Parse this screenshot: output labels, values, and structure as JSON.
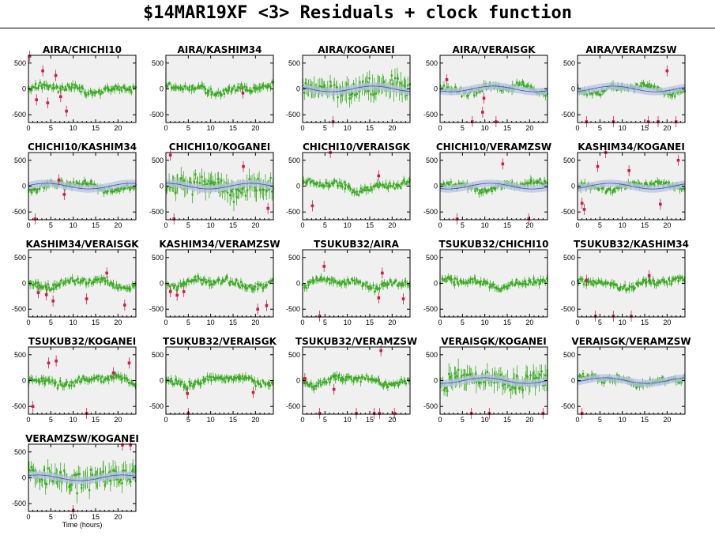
{
  "page": {
    "title": "$14MAR19XF <3> Residuals + clock function",
    "xlabel": "Time (hours)"
  },
  "colors": {
    "residual": "#3aaa22",
    "outlier": "#c8204a",
    "clock_band": "#b8c4e4",
    "clock_line": "#3a50b0",
    "panel_bg": "#f0f0f0"
  },
  "chart_data": [
    {
      "type": "scatter",
      "title": "AIRA/CHICHI10",
      "xlim": [
        0,
        24
      ],
      "ylim": [
        -650,
        650
      ],
      "yticks": [
        -500,
        0,
        500
      ],
      "xticks": [
        0,
        5,
        10,
        15,
        20
      ],
      "clock_function": false,
      "outliers": [
        {
          "x": 0.3,
          "y": 680
        },
        {
          "x": 1.8,
          "y": -210
        },
        {
          "x": 3.2,
          "y": 350
        },
        {
          "x": 4.3,
          "y": -270
        },
        {
          "x": 6.1,
          "y": 260
        },
        {
          "x": 7.2,
          "y": -150
        },
        {
          "x": 8.5,
          "y": -430
        }
      ]
    },
    {
      "type": "scatter",
      "title": "AIRA/KASHIM34",
      "xlim": [
        0,
        24
      ],
      "ylim": [
        -650,
        650
      ],
      "yticks": [
        -500,
        0,
        500
      ],
      "xticks": [
        0,
        5,
        10,
        15,
        20
      ],
      "clock_function": false,
      "outliers": [
        {
          "x": 17.2,
          "y": -80
        }
      ]
    },
    {
      "type": "scatter",
      "title": "AIRA/KOGANEI",
      "xlim": [
        0,
        24
      ],
      "ylim": [
        -650,
        650
      ],
      "yticks": [
        -500,
        0,
        500
      ],
      "xticks": [
        0,
        5,
        10,
        15,
        20
      ],
      "clock_function": true,
      "outliers": [
        {
          "x": 6.8,
          "y": -680
        }
      ]
    },
    {
      "type": "scatter",
      "title": "AIRA/VERAISGK",
      "xlim": [
        0,
        24
      ],
      "ylim": [
        -650,
        650
      ],
      "yticks": [
        -500,
        0,
        500
      ],
      "xticks": [
        0,
        5,
        10,
        15,
        20
      ],
      "clock_function": true,
      "outliers": [
        {
          "x": 1.5,
          "y": 180
        },
        {
          "x": 7.2,
          "y": -680
        },
        {
          "x": 9.8,
          "y": -180
        },
        {
          "x": 9.5,
          "y": -450
        },
        {
          "x": 12.5,
          "y": -680
        }
      ]
    },
    {
      "type": "scatter",
      "title": "AIRA/VERAMZSW",
      "xlim": [
        0,
        24
      ],
      "ylim": [
        -650,
        650
      ],
      "yticks": [
        -500,
        0,
        500
      ],
      "xticks": [
        0,
        5,
        10,
        15,
        20
      ],
      "clock_function": true,
      "outliers": [
        {
          "x": 2.0,
          "y": -680
        },
        {
          "x": 8.0,
          "y": -680
        },
        {
          "x": 15.8,
          "y": -680
        },
        {
          "x": 18.0,
          "y": -680
        },
        {
          "x": 20.0,
          "y": 350
        },
        {
          "x": 22.0,
          "y": -680
        }
      ]
    },
    {
      "type": "scatter",
      "title": "CHICHI10/KASHIM34",
      "xlim": [
        0,
        24
      ],
      "ylim": [
        -650,
        650
      ],
      "yticks": [
        -500,
        0,
        500
      ],
      "xticks": [
        0,
        5,
        10,
        15,
        20
      ],
      "clock_function": true,
      "outliers": [
        {
          "x": 1.5,
          "y": -680
        },
        {
          "x": 6.8,
          "y": 120
        },
        {
          "x": 8.0,
          "y": -160
        }
      ]
    },
    {
      "type": "scatter",
      "title": "CHICHI10/KOGANEI",
      "xlim": [
        0,
        24
      ],
      "ylim": [
        -650,
        650
      ],
      "yticks": [
        -500,
        0,
        500
      ],
      "xticks": [
        0,
        5,
        10,
        15,
        20
      ],
      "clock_function": true,
      "outliers": [
        {
          "x": 1.0,
          "y": 600
        },
        {
          "x": 1.8,
          "y": -680
        },
        {
          "x": 17.3,
          "y": 380
        },
        {
          "x": 22.8,
          "y": -430
        }
      ]
    },
    {
      "type": "scatter",
      "title": "CHICHI10/VERAISGK",
      "xlim": [
        0,
        24
      ],
      "ylim": [
        -650,
        650
      ],
      "yticks": [
        -500,
        0,
        500
      ],
      "xticks": [
        0,
        5,
        10,
        15,
        20
      ],
      "clock_function": false,
      "outliers": [
        {
          "x": 2.2,
          "y": -380
        },
        {
          "x": 6.2,
          "y": 650
        },
        {
          "x": 17.0,
          "y": 200
        }
      ]
    },
    {
      "type": "scatter",
      "title": "CHICHI10/VERAMZSW",
      "xlim": [
        0,
        24
      ],
      "ylim": [
        -650,
        650
      ],
      "yticks": [
        -500,
        0,
        500
      ],
      "xticks": [
        0,
        5,
        10,
        15,
        20
      ],
      "clock_function": true,
      "outliers": [
        {
          "x": 3.8,
          "y": -680
        },
        {
          "x": 14.0,
          "y": 430
        },
        {
          "x": 19.8,
          "y": -680
        }
      ]
    },
    {
      "type": "scatter",
      "title": "KASHIM34/KOGANEI",
      "xlim": [
        0,
        24
      ],
      "ylim": [
        -650,
        650
      ],
      "yticks": [
        -500,
        0,
        500
      ],
      "xticks": [
        0,
        5,
        10,
        15,
        20
      ],
      "clock_function": true,
      "outliers": [
        {
          "x": 1.0,
          "y": -330
        },
        {
          "x": 1.5,
          "y": -450
        },
        {
          "x": 4.5,
          "y": 380
        },
        {
          "x": 6.3,
          "y": 650
        },
        {
          "x": 11.5,
          "y": 300
        },
        {
          "x": 18.5,
          "y": -350
        },
        {
          "x": 22.5,
          "y": 500
        }
      ]
    },
    {
      "type": "scatter",
      "title": "KASHIM34/VERAISGK",
      "xlim": [
        0,
        24
      ],
      "ylim": [
        -650,
        650
      ],
      "yticks": [
        -500,
        0,
        500
      ],
      "xticks": [
        0,
        5,
        10,
        15,
        20
      ],
      "clock_function": false,
      "outliers": [
        {
          "x": 2.2,
          "y": -180
        },
        {
          "x": 4.0,
          "y": -220
        },
        {
          "x": 5.5,
          "y": -340
        },
        {
          "x": 13.0,
          "y": -300
        },
        {
          "x": 17.5,
          "y": 200
        },
        {
          "x": 21.5,
          "y": -420
        }
      ]
    },
    {
      "type": "scatter",
      "title": "KASHIM34/VERAMZSW",
      "xlim": [
        0,
        24
      ],
      "ylim": [
        -650,
        650
      ],
      "yticks": [
        -500,
        0,
        500
      ],
      "xticks": [
        0,
        5,
        10,
        15,
        20
      ],
      "clock_function": false,
      "outliers": [
        {
          "x": 1.0,
          "y": -160
        },
        {
          "x": 2.5,
          "y": -230
        },
        {
          "x": 4.0,
          "y": -160
        },
        {
          "x": 20.5,
          "y": -500
        },
        {
          "x": 22.5,
          "y": -430
        }
      ]
    },
    {
      "type": "scatter",
      "title": "TSUKUB32/AIRA",
      "xlim": [
        0,
        24
      ],
      "ylim": [
        -650,
        650
      ],
      "yticks": [
        -500,
        0,
        500
      ],
      "xticks": [
        0,
        5,
        10,
        15,
        20
      ],
      "clock_function": false,
      "outliers": [
        {
          "x": 3.8,
          "y": -680
        },
        {
          "x": 4.8,
          "y": 330
        },
        {
          "x": 17.8,
          "y": 200
        },
        {
          "x": 17.0,
          "y": -280
        },
        {
          "x": 22.5,
          "y": -300
        }
      ]
    },
    {
      "type": "scatter",
      "title": "TSUKUB32/CHICHI10",
      "xlim": [
        0,
        24
      ],
      "ylim": [
        -650,
        650
      ],
      "yticks": [
        -500,
        0,
        500
      ],
      "xticks": [
        0,
        5,
        10,
        15,
        20
      ],
      "clock_function": false,
      "outliers": []
    },
    {
      "type": "scatter",
      "title": "TSUKUB32/KASHIM34",
      "xlim": [
        0,
        24
      ],
      "ylim": [
        -650,
        650
      ],
      "yticks": [
        -500,
        0,
        500
      ],
      "xticks": [
        0,
        5,
        10,
        15,
        20
      ],
      "clock_function": false,
      "outliers": [
        {
          "x": 2.0,
          "y": 60
        },
        {
          "x": 4.0,
          "y": -680
        },
        {
          "x": 8.0,
          "y": -680
        },
        {
          "x": 12.0,
          "y": -680
        },
        {
          "x": 16.0,
          "y": 150
        }
      ]
    },
    {
      "type": "scatter",
      "title": "TSUKUB32/KOGANEI",
      "xlim": [
        0,
        24
      ],
      "ylim": [
        -650,
        650
      ],
      "yticks": [
        -500,
        0,
        500
      ],
      "xticks": [
        0,
        5,
        10,
        15,
        20
      ],
      "clock_function": false,
      "outliers": [
        {
          "x": 1.0,
          "y": -500
        },
        {
          "x": 4.5,
          "y": 340
        },
        {
          "x": 6.2,
          "y": 380
        },
        {
          "x": 13.0,
          "y": -680
        },
        {
          "x": 19.0,
          "y": 150
        },
        {
          "x": 22.5,
          "y": 340
        }
      ]
    },
    {
      "type": "scatter",
      "title": "TSUKUB32/VERAISGK",
      "xlim": [
        0,
        24
      ],
      "ylim": [
        -650,
        650
      ],
      "yticks": [
        -500,
        0,
        500
      ],
      "xticks": [
        0,
        5,
        10,
        15,
        20
      ],
      "clock_function": false,
      "outliers": [
        {
          "x": 4.8,
          "y": -250
        },
        {
          "x": 5.0,
          "y": -680
        },
        {
          "x": 19.5,
          "y": -230
        }
      ]
    },
    {
      "type": "scatter",
      "title": "TSUKUB32/VERAMZSW",
      "xlim": [
        0,
        24
      ],
      "ylim": [
        -650,
        650
      ],
      "yticks": [
        -500,
        0,
        500
      ],
      "xticks": [
        0,
        5,
        10,
        15,
        20
      ],
      "clock_function": false,
      "outliers": [
        {
          "x": 0.5,
          "y": 40
        },
        {
          "x": 3.8,
          "y": -680
        },
        {
          "x": 7.0,
          "y": -170
        },
        {
          "x": 12.0,
          "y": -680
        },
        {
          "x": 16.0,
          "y": -680
        },
        {
          "x": 17.2,
          "y": -680
        },
        {
          "x": 17.5,
          "y": 580
        },
        {
          "x": 20.5,
          "y": -680
        }
      ]
    },
    {
      "type": "scatter",
      "title": "VERAISGK/KOGANEI",
      "xlim": [
        0,
        24
      ],
      "ylim": [
        -650,
        650
      ],
      "yticks": [
        -500,
        0,
        500
      ],
      "xticks": [
        0,
        5,
        10,
        15,
        20
      ],
      "clock_function": true,
      "outliers": [
        {
          "x": 7.0,
          "y": -680
        },
        {
          "x": 11.0,
          "y": -680
        },
        {
          "x": 23.0,
          "y": -680
        }
      ]
    },
    {
      "type": "scatter",
      "title": "VERAISGK/VERAMZSW",
      "xlim": [
        0,
        24
      ],
      "ylim": [
        -650,
        650
      ],
      "yticks": [
        -500,
        0,
        500
      ],
      "xticks": [
        0,
        5,
        10,
        15,
        20
      ],
      "clock_function": true,
      "outliers": [
        {
          "x": 1.0,
          "y": -680
        }
      ]
    },
    {
      "type": "scatter",
      "title": "VERAMZSW/KOGANEI",
      "xlim": [
        0,
        24
      ],
      "ylim": [
        -650,
        650
      ],
      "yticks": [
        -500,
        0,
        500
      ],
      "xticks": [
        0,
        5,
        10,
        15,
        20
      ],
      "clock_function": true,
      "outliers": [
        {
          "x": 10.0,
          "y": -680
        },
        {
          "x": 21.0,
          "y": 680
        },
        {
          "x": 22.8,
          "y": 680
        }
      ]
    }
  ]
}
